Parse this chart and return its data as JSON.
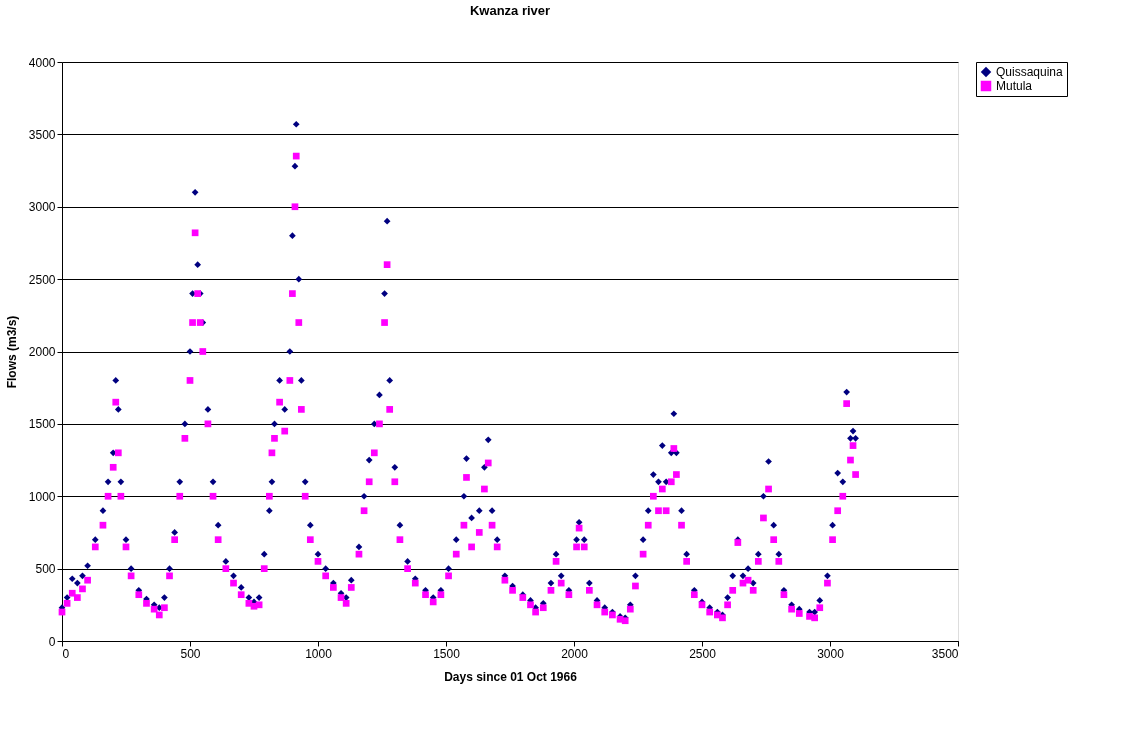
{
  "chart_data": {
    "type": "scatter",
    "title": "Kwanza river",
    "xlabel": "Days since 01 Oct 1966",
    "ylabel": "Flows (m3/s)",
    "xlim": [
      0,
      3500
    ],
    "xticks": [
      0,
      500,
      1000,
      1500,
      2000,
      2500,
      3000,
      3500
    ],
    "ylim": [
      0,
      4000
    ],
    "yticks": [
      0,
      500,
      1000,
      1500,
      2000,
      2500,
      3000,
      3500,
      4000
    ],
    "grid": "y",
    "legend": "right",
    "series": [
      {
        "name": "Quissaquina",
        "color": "#000080",
        "marker": "diamond",
        "x": [
          0,
          20,
          40,
          60,
          80,
          100,
          130,
          160,
          180,
          200,
          210,
          220,
          230,
          250,
          270,
          300,
          330,
          360,
          380,
          400,
          420,
          440,
          460,
          480,
          500,
          510,
          520,
          530,
          540,
          550,
          570,
          590,
          610,
          640,
          670,
          700,
          730,
          750,
          770,
          790,
          810,
          820,
          830,
          850,
          870,
          890,
          900,
          910,
          915,
          925,
          935,
          950,
          970,
          1000,
          1030,
          1060,
          1090,
          1110,
          1130,
          1160,
          1180,
          1200,
          1220,
          1240,
          1260,
          1270,
          1280,
          1300,
          1320,
          1350,
          1380,
          1420,
          1450,
          1480,
          1510,
          1540,
          1570,
          1580,
          1600,
          1630,
          1650,
          1665,
          1680,
          1700,
          1730,
          1760,
          1800,
          1830,
          1850,
          1880,
          1910,
          1930,
          1950,
          1980,
          2010,
          2020,
          2040,
          2060,
          2090,
          2120,
          2150,
          2180,
          2200,
          2220,
          2240,
          2270,
          2290,
          2310,
          2330,
          2345,
          2360,
          2380,
          2390,
          2400,
          2420,
          2440,
          2470,
          2500,
          2530,
          2560,
          2580,
          2600,
          2620,
          2640,
          2660,
          2680,
          2700,
          2720,
          2740,
          2760,
          2780,
          2800,
          2820,
          2850,
          2880,
          2920,
          2940,
          2960,
          2990,
          3010,
          3030,
          3050,
          3065,
          3080,
          3090,
          3100
        ],
        "values": [
          230,
          300,
          430,
          400,
          450,
          520,
          700,
          900,
          1100,
          1300,
          1800,
          1600,
          1100,
          700,
          500,
          350,
          290,
          250,
          230,
          300,
          500,
          750,
          1100,
          1500,
          2000,
          2400,
          3100,
          2600,
          2400,
          2200,
          1600,
          1100,
          800,
          550,
          450,
          370,
          300,
          270,
          300,
          600,
          900,
          1100,
          1500,
          1800,
          1600,
          2000,
          2800,
          3280,
          3570,
          2500,
          1800,
          1100,
          800,
          600,
          500,
          400,
          330,
          300,
          420,
          650,
          1000,
          1250,
          1500,
          1700,
          2400,
          2900,
          1800,
          1200,
          800,
          550,
          430,
          350,
          300,
          350,
          500,
          700,
          1000,
          1260,
          850,
          900,
          1200,
          1390,
          900,
          700,
          450,
          380,
          320,
          280,
          230,
          260,
          400,
          600,
          450,
          350,
          700,
          820,
          700,
          400,
          280,
          230,
          200,
          170,
          160,
          250,
          450,
          700,
          900,
          1150,
          1100,
          1350,
          1100,
          1300,
          1570,
          1300,
          900,
          600,
          350,
          270,
          230,
          200,
          180,
          300,
          450,
          700,
          450,
          500,
          400,
          600,
          1000,
          1240,
          800,
          600,
          350,
          250,
          220,
          200,
          200,
          280,
          450,
          800,
          1160,
          1100,
          1720,
          1400,
          1450,
          1400
        ]
      },
      {
        "name": "Mutula",
        "color": "#ff00ff",
        "marker": "square",
        "x": [
          0,
          20,
          40,
          60,
          80,
          100,
          130,
          160,
          180,
          200,
          210,
          220,
          230,
          250,
          270,
          300,
          330,
          360,
          380,
          400,
          420,
          440,
          460,
          480,
          500,
          510,
          520,
          530,
          540,
          550,
          570,
          590,
          610,
          640,
          670,
          700,
          730,
          750,
          770,
          790,
          810,
          820,
          830,
          850,
          870,
          890,
          900,
          910,
          915,
          925,
          935,
          950,
          970,
          1000,
          1030,
          1060,
          1090,
          1110,
          1130,
          1160,
          1180,
          1200,
          1220,
          1240,
          1260,
          1270,
          1280,
          1300,
          1320,
          1350,
          1380,
          1420,
          1450,
          1480,
          1510,
          1540,
          1570,
          1580,
          1600,
          1630,
          1650,
          1665,
          1680,
          1700,
          1730,
          1760,
          1800,
          1830,
          1850,
          1880,
          1910,
          1930,
          1950,
          1980,
          2010,
          2020,
          2040,
          2060,
          2090,
          2120,
          2150,
          2180,
          2200,
          2220,
          2240,
          2270,
          2290,
          2310,
          2330,
          2345,
          2360,
          2380,
          2390,
          2400,
          2420,
          2440,
          2470,
          2500,
          2530,
          2560,
          2580,
          2600,
          2620,
          2640,
          2660,
          2680,
          2700,
          2720,
          2740,
          2760,
          2780,
          2800,
          2820,
          2850,
          2880,
          2920,
          2940,
          2960,
          2990,
          3010,
          3030,
          3050,
          3065,
          3080,
          3090,
          3100
        ],
        "values": [
          200,
          260,
          330,
          300,
          360,
          420,
          650,
          800,
          1000,
          1200,
          1650,
          1300,
          1000,
          650,
          450,
          320,
          260,
          220,
          180,
          230,
          450,
          700,
          1000,
          1400,
          1800,
          2200,
          2820,
          2400,
          2200,
          2000,
          1500,
          1000,
          700,
          500,
          400,
          320,
          260,
          240,
          250,
          500,
          1000,
          1300,
          1400,
          1650,
          1450,
          1800,
          2400,
          3000,
          3350,
          2200,
          1600,
          1000,
          700,
          550,
          450,
          370,
          300,
          260,
          370,
          600,
          900,
          1100,
          1300,
          1500,
          2200,
          2600,
          1600,
          1100,
          700,
          500,
          400,
          320,
          270,
          320,
          450,
          600,
          800,
          1130,
          650,
          750,
          1050,
          1230,
          800,
          650,
          420,
          350,
          300,
          250,
          200,
          230,
          350,
          550,
          400,
          320,
          650,
          780,
          650,
          350,
          250,
          200,
          180,
          150,
          140,
          220,
          380,
          600,
          800,
          1000,
          900,
          1050,
          900,
          1100,
          1330,
          1150,
          800,
          550,
          320,
          250,
          200,
          180,
          160,
          250,
          350,
          680,
          400,
          420,
          350,
          550,
          850,
          1050,
          700,
          550,
          320,
          220,
          190,
          170,
          160,
          230,
          400,
          700,
          900,
          1000,
          1640,
          1250,
          1350,
          1150
        ]
      }
    ]
  }
}
